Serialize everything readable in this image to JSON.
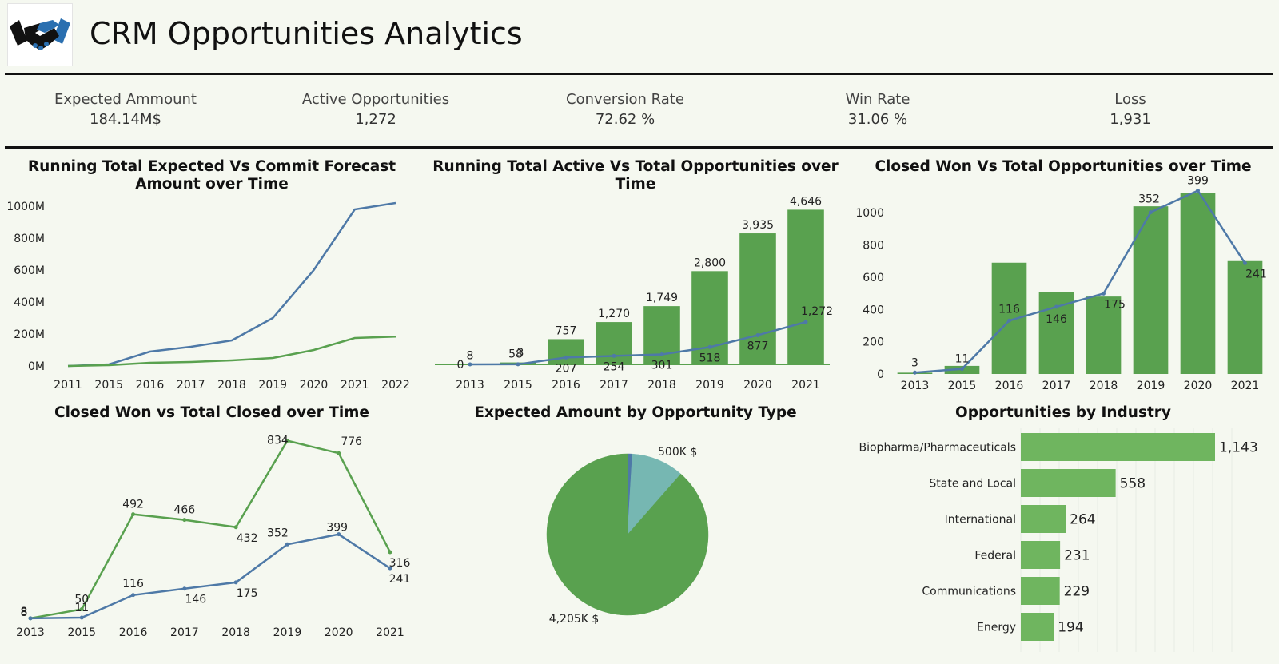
{
  "header": {
    "title": "CRM Opportunities Analytics"
  },
  "kpis": [
    {
      "label": "Expected Ammount",
      "value": "184.14M$"
    },
    {
      "label": "Active Opportunities",
      "value": "1,272"
    },
    {
      "label": "Conversion Rate",
      "value": "72.62 %"
    },
    {
      "label": "Win Rate",
      "value": "31.06 %"
    },
    {
      "label": "Loss",
      "value": "1,931"
    }
  ],
  "colors": {
    "green": "#59a14f",
    "blue": "#4e79a7",
    "teal": "#76b7b2",
    "bar_green": "#6fb55f",
    "background": "#f5f8f0"
  },
  "chart_data": [
    {
      "id": "expected-vs-commit",
      "type": "line",
      "title": "Running Total Expected Vs Commit Forecast Amount over Time",
      "categories": [
        "2011",
        "2015",
        "2016",
        "2017",
        "2018",
        "2019",
        "2020",
        "2021",
        "2022"
      ],
      "y_ticks": [
        "0M",
        "200M",
        "400M",
        "600M",
        "800M",
        "1000M"
      ],
      "ylim": [
        0,
        1000
      ],
      "series": [
        {
          "values": [
            0,
            10,
            90,
            120,
            160,
            300,
            600,
            980,
            1020
          ]
        },
        {
          "values": [
            0,
            5,
            20,
            25,
            35,
            50,
            100,
            175,
            184
          ]
        }
      ]
    },
    {
      "id": "active-vs-total",
      "type": "bar",
      "title": "Running Total Active Vs Total Opportunities over Time",
      "categories": [
        "2013",
        "2015",
        "2016",
        "2017",
        "2018",
        "2019",
        "2020",
        "2021"
      ],
      "ylim": [
        0,
        4800
      ],
      "bars": [
        8,
        58,
        757,
        1270,
        1749,
        2800,
        3935,
        4646
      ],
      "bar_labels": [
        "8",
        "58",
        "757",
        "1,270",
        "1,749",
        "2,800",
        "3,935",
        "4,646"
      ],
      "line": [
        0,
        3,
        207,
        254,
        301,
        518,
        877,
        1272
      ],
      "line_labels": [
        "0",
        "3",
        "207",
        "254",
        "301",
        "518",
        "877",
        "1,272"
      ]
    },
    {
      "id": "closed-won-vs-total",
      "type": "bar",
      "title": "Closed Won Vs Total Opportunities over Time",
      "categories": [
        "2013",
        "2015",
        "2016",
        "2017",
        "2018",
        "2019",
        "2020",
        "2021"
      ],
      "y_ticks": [
        "0",
        "200",
        "400",
        "600",
        "800",
        "1000"
      ],
      "ylim": [
        0,
        1120
      ],
      "bars": [
        8,
        50,
        690,
        510,
        480,
        1040,
        1120,
        700
      ],
      "line": [
        3,
        11,
        116,
        146,
        175,
        352,
        399,
        241
      ],
      "line_labels": [
        "3",
        "11",
        "116",
        "146",
        "175",
        "352",
        "399",
        "241"
      ]
    },
    {
      "id": "closed-won-vs-closed",
      "type": "line",
      "title": "Closed Won vs Total Closed over Time",
      "categories": [
        "2013",
        "2015",
        "2016",
        "2017",
        "2018",
        "2019",
        "2020",
        "2021"
      ],
      "ylim": [
        0,
        840
      ],
      "series": [
        {
          "values": [
            8,
            50,
            492,
            466,
            432,
            834,
            776,
            316
          ],
          "labels": [
            "8",
            "50",
            "492",
            "466",
            "432",
            "834",
            "776",
            "316"
          ]
        },
        {
          "values": [
            8,
            11,
            116,
            146,
            175,
            352,
            399,
            241
          ],
          "labels": [
            "8",
            "11",
            "116",
            "146",
            "175",
            "352",
            "399",
            "241"
          ]
        }
      ]
    },
    {
      "id": "amount-by-type",
      "type": "pie",
      "title": "Expected Amount by Opportunity Type",
      "slices": [
        {
          "value": 4205,
          "label": "4,205K $"
        },
        {
          "value": 500,
          "label": "500K $"
        },
        {
          "value": 45,
          "label": ""
        }
      ]
    },
    {
      "id": "by-industry",
      "type": "bar",
      "orientation": "horizontal",
      "title": "Opportunities by Industry",
      "categories": [
        "Biopharma/Pharmaceuticals",
        "State and Local",
        "International",
        "Federal",
        "Communications",
        "Energy"
      ],
      "values": [
        1143,
        558,
        264,
        231,
        229,
        194
      ],
      "value_labels": [
        "1,143",
        "558",
        "264",
        "231",
        "229",
        "194"
      ]
    }
  ]
}
